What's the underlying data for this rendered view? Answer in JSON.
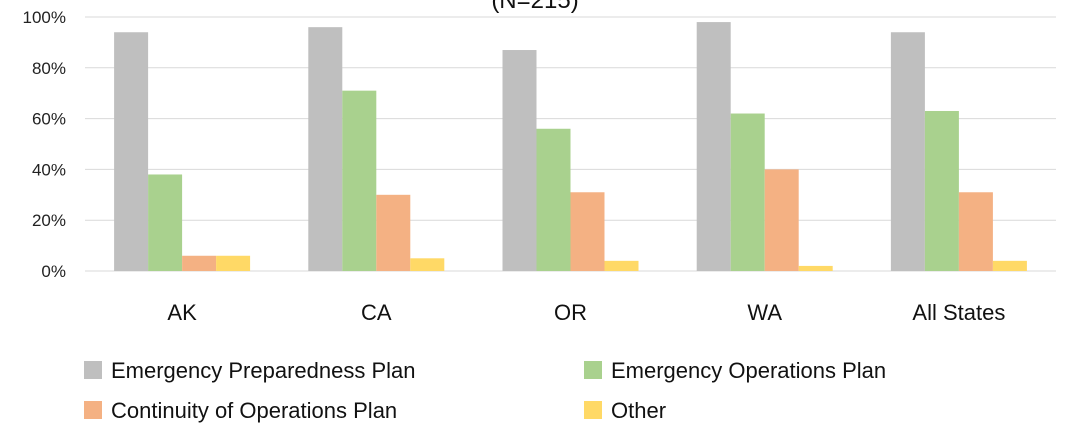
{
  "chart_data": {
    "type": "bar",
    "title": "(N=215)",
    "xlabel": "",
    "ylabel": "",
    "ylim": [
      0,
      100
    ],
    "y_ticks": [
      "0%",
      "20%",
      "40%",
      "60%",
      "80%",
      "100%"
    ],
    "y_tick_values": [
      0,
      20,
      40,
      60,
      80,
      100
    ],
    "grid": true,
    "legend_position": "bottom",
    "categories": [
      "AK",
      "CA",
      "OR",
      "WA",
      "All States"
    ],
    "series": [
      {
        "name": "Emergency Preparedness Plan",
        "color": "#BFBFBF",
        "values": [
          94,
          96,
          87,
          98,
          94
        ]
      },
      {
        "name": "Emergency Operations Plan",
        "color": "#A9D18E",
        "values": [
          38,
          71,
          56,
          62,
          63
        ]
      },
      {
        "name": "Continuity of Operations Plan",
        "color": "#F4B183",
        "values": [
          6,
          30,
          31,
          40,
          31
        ]
      },
      {
        "name": "Other",
        "color": "#FFD966",
        "values": [
          6,
          5,
          4,
          2,
          4
        ]
      }
    ]
  }
}
